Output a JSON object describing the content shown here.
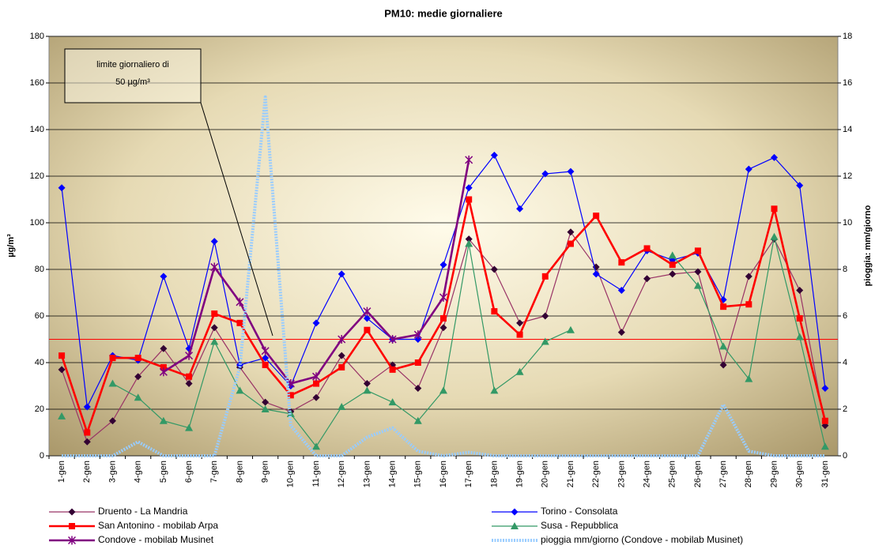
{
  "chart_data": {
    "type": "line",
    "title": "PM10: medie giornaliere",
    "ylabel": "µg/m³",
    "y2label": "pioggia: mm/giorno",
    "annotation": [
      "limite giornaliero di",
      "50 µg/m³"
    ],
    "limit": {
      "value": 50,
      "color": "#ff0000"
    },
    "categories": [
      "1-gen",
      "2-gen",
      "3-gen",
      "4-gen",
      "5-gen",
      "6-gen",
      "7-gen",
      "8-gen",
      "9-gen",
      "10-gen",
      "11-gen",
      "12-gen",
      "13-gen",
      "14-gen",
      "15-gen",
      "16-gen",
      "17-gen",
      "18-gen",
      "19-gen",
      "20-gen",
      "21-gen",
      "22-gen",
      "23-gen",
      "24-gen",
      "25-gen",
      "26-gen",
      "27-gen",
      "28-gen",
      "29-gen",
      "30-gen",
      "31-gen"
    ],
    "ylim": [
      0,
      180
    ],
    "yticks": [
      0,
      20,
      40,
      60,
      80,
      100,
      120,
      140,
      160,
      180
    ],
    "y2lim": [
      0,
      18
    ],
    "y2ticks": [
      0,
      2,
      4,
      6,
      8,
      10,
      12,
      14,
      16,
      18
    ],
    "grid": true,
    "series": [
      {
        "name": "Druento - La Mandria",
        "color": "#993366",
        "marker": "diamond",
        "marker_color": "#330033",
        "values": [
          37,
          6,
          15,
          34,
          46,
          31,
          55,
          38,
          23,
          19,
          25,
          43,
          31,
          39,
          29,
          55,
          93,
          80,
          57,
          60,
          96,
          81,
          53,
          76,
          78,
          79,
          39,
          77,
          93,
          71,
          13
        ]
      },
      {
        "name": "Torino - Consolata",
        "color": "#0000ff",
        "marker": "diamond",
        "marker_color": "#0000ff",
        "values": [
          115,
          21,
          43,
          41,
          77,
          46,
          92,
          39,
          42,
          30,
          57,
          78,
          59,
          50,
          50,
          82,
          115,
          129,
          106,
          121,
          122,
          78,
          71,
          88,
          84,
          87,
          67,
          123,
          128,
          116,
          29
        ]
      },
      {
        "name": "San Antonino - mobilab Arpa",
        "color": "#ff0000",
        "marker": "square",
        "marker_color": "#ff0000",
        "values": [
          43,
          10,
          42,
          42,
          38,
          34,
          61,
          57,
          39,
          26,
          31,
          38,
          54,
          37,
          40,
          59,
          110,
          62,
          52,
          77,
          91,
          103,
          83,
          89,
          82,
          88,
          64,
          65,
          106,
          59,
          15
        ]
      },
      {
        "name": "Susa - Repubblica",
        "color": "#339966",
        "marker": "triangle",
        "marker_color": "#339966",
        "values": [
          17,
          null,
          31,
          25,
          15,
          12,
          49,
          28,
          20,
          18,
          4,
          21,
          28,
          23,
          15,
          28,
          91,
          28,
          36,
          49,
          54,
          null,
          null,
          null,
          86,
          73,
          47,
          33,
          94,
          51,
          4
        ]
      },
      {
        "name": "Condove - mobilab Musinet",
        "color": "#800080",
        "marker": "star",
        "marker_color": "#800080",
        "values": [
          null,
          null,
          null,
          null,
          36,
          43,
          81,
          66,
          45,
          31,
          34,
          50,
          62,
          50,
          52,
          68,
          127,
          null,
          null,
          null,
          null,
          null,
          null,
          null,
          null,
          null,
          null,
          null,
          null,
          null,
          null
        ]
      },
      {
        "name": "pioggia  mm/giorno (Condove - mobilab Musinet)",
        "color": "#99ccff",
        "marker": "none",
        "axis": "y2",
        "values": [
          0,
          0,
          0,
          0.6,
          0,
          0,
          0,
          3.8,
          15.4,
          1.3,
          0,
          0,
          0.8,
          1.2,
          0.2,
          0,
          0.15,
          0,
          0,
          0,
          0,
          0,
          0,
          0,
          0,
          0,
          2.2,
          0.2,
          0,
          0,
          0
        ]
      }
    ]
  }
}
